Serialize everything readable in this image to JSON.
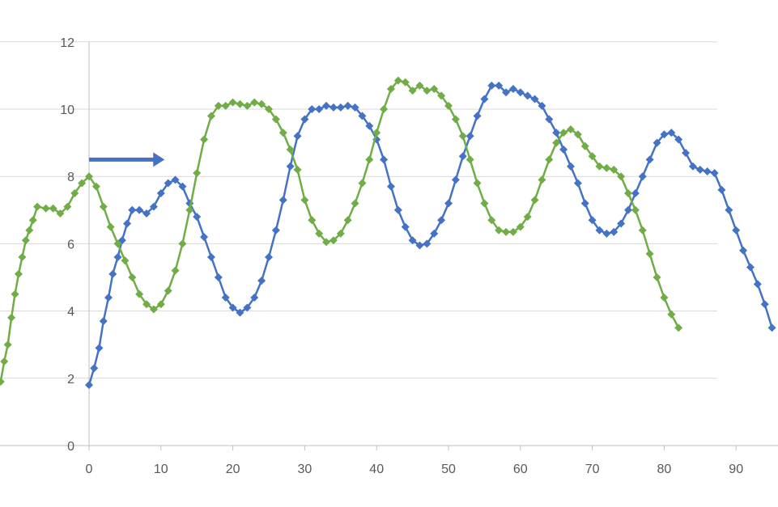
{
  "chart_data": {
    "type": "scatter",
    "title": "",
    "xlabel": "",
    "ylabel": "",
    "xlim": [
      -12.3,
      95.5
    ],
    "ylim": [
      0,
      12
    ],
    "x_ticks": [
      "0",
      "10",
      "20",
      "30",
      "40",
      "50",
      "60",
      "70",
      "80",
      "90"
    ],
    "y_ticks": [
      "0",
      "2",
      "4",
      "6",
      "8",
      "10",
      "12"
    ],
    "grid": "horizontal",
    "legend": "none",
    "arrow": {
      "from": [
        0,
        8.5
      ],
      "to": [
        10.5,
        8.5
      ],
      "color": "#4472C4"
    },
    "series": [
      {
        "color": "#4472C4",
        "points": [
          [
            0,
            1.8
          ],
          [
            0.7,
            2.3
          ],
          [
            1.4,
            2.9
          ],
          [
            2,
            3.7
          ],
          [
            2.7,
            4.4
          ],
          [
            3.3,
            5.1
          ],
          [
            4,
            5.6
          ],
          [
            4.6,
            6.1
          ],
          [
            5.3,
            6.6
          ],
          [
            6,
            7
          ],
          [
            7,
            7
          ],
          [
            8,
            6.9
          ],
          [
            9,
            7.1
          ],
          [
            10,
            7.5
          ],
          [
            11,
            7.8
          ],
          [
            12,
            7.9
          ],
          [
            13,
            7.7
          ],
          [
            14,
            7.2
          ],
          [
            15,
            6.8
          ],
          [
            16,
            6.2
          ],
          [
            17,
            5.6
          ],
          [
            18,
            5
          ],
          [
            19,
            4.4
          ],
          [
            20,
            4.1
          ],
          [
            21,
            3.95
          ],
          [
            22,
            4.1
          ],
          [
            23,
            4.4
          ],
          [
            24,
            4.9
          ],
          [
            25,
            5.6
          ],
          [
            26,
            6.4
          ],
          [
            27,
            7.3
          ],
          [
            28,
            8.3
          ],
          [
            29,
            9.2
          ],
          [
            30,
            9.7
          ],
          [
            31,
            10
          ],
          [
            32,
            10
          ],
          [
            33,
            10.1
          ],
          [
            34,
            10.05
          ],
          [
            35,
            10.05
          ],
          [
            36,
            10.1
          ],
          [
            37,
            10.05
          ],
          [
            38,
            9.8
          ],
          [
            39,
            9.5
          ],
          [
            40,
            9.1
          ],
          [
            41,
            8.5
          ],
          [
            42,
            7.7
          ],
          [
            43,
            7
          ],
          [
            44,
            6.5
          ],
          [
            45,
            6.1
          ],
          [
            46,
            5.95
          ],
          [
            47,
            6
          ],
          [
            48,
            6.3
          ],
          [
            49,
            6.7
          ],
          [
            50,
            7.2
          ],
          [
            51,
            7.9
          ],
          [
            52,
            8.6
          ],
          [
            53,
            9.2
          ],
          [
            54,
            9.8
          ],
          [
            55,
            10.3
          ],
          [
            56,
            10.7
          ],
          [
            57,
            10.7
          ],
          [
            58,
            10.5
          ],
          [
            59,
            10.6
          ],
          [
            60,
            10.5
          ],
          [
            61,
            10.4
          ],
          [
            62,
            10.3
          ],
          [
            63,
            10.1
          ],
          [
            64,
            9.7
          ],
          [
            65,
            9.3
          ],
          [
            66,
            8.8
          ],
          [
            67,
            8.3
          ],
          [
            68,
            7.8
          ],
          [
            69,
            7.2
          ],
          [
            70,
            6.7
          ],
          [
            71,
            6.4
          ],
          [
            72,
            6.3
          ],
          [
            73,
            6.35
          ],
          [
            74,
            6.6
          ],
          [
            75,
            7
          ],
          [
            76,
            7.5
          ],
          [
            77,
            8
          ],
          [
            78,
            8.5
          ],
          [
            79,
            9
          ],
          [
            80,
            9.25
          ],
          [
            81,
            9.3
          ],
          [
            82,
            9.1
          ],
          [
            83,
            8.7
          ],
          [
            84,
            8.3
          ],
          [
            85,
            8.2
          ],
          [
            86,
            8.15
          ],
          [
            87,
            8.1
          ],
          [
            88,
            7.6
          ],
          [
            89,
            7
          ],
          [
            90,
            6.4
          ],
          [
            91,
            5.8
          ],
          [
            92,
            5.3
          ],
          [
            93,
            4.8
          ],
          [
            94,
            4.2
          ],
          [
            95,
            3.5
          ]
        ]
      },
      {
        "color": "#70AD47",
        "points": [
          [
            -12.3,
            1.9
          ],
          [
            -11.8,
            2.5
          ],
          [
            -11.3,
            3.0
          ],
          [
            -10.8,
            3.8
          ],
          [
            -10.3,
            4.5
          ],
          [
            -9.8,
            5.1
          ],
          [
            -9.3,
            5.6
          ],
          [
            -8.8,
            6.1
          ],
          [
            -8.3,
            6.4
          ],
          [
            -7.8,
            6.7
          ],
          [
            -7.2,
            7.1
          ],
          [
            -6,
            7.05
          ],
          [
            -5,
            7.05
          ],
          [
            -4,
            6.9
          ],
          [
            -3,
            7.1
          ],
          [
            -2,
            7.5
          ],
          [
            -1,
            7.8
          ],
          [
            0,
            8
          ],
          [
            1,
            7.7
          ],
          [
            2,
            7.1
          ],
          [
            3,
            6.5
          ],
          [
            4,
            6
          ],
          [
            5,
            5.5
          ],
          [
            6,
            5
          ],
          [
            7,
            4.5
          ],
          [
            8,
            4.2
          ],
          [
            9,
            4.05
          ],
          [
            10,
            4.2
          ],
          [
            11,
            4.6
          ],
          [
            12,
            5.2
          ],
          [
            13,
            6
          ],
          [
            14,
            7
          ],
          [
            15,
            8.1
          ],
          [
            16,
            9.1
          ],
          [
            17,
            9.8
          ],
          [
            18,
            10.1
          ],
          [
            19,
            10.1
          ],
          [
            20,
            10.2
          ],
          [
            21,
            10.15
          ],
          [
            22,
            10.1
          ],
          [
            23,
            10.2
          ],
          [
            24,
            10.15
          ],
          [
            25,
            10
          ],
          [
            26,
            9.7
          ],
          [
            27,
            9.3
          ],
          [
            28,
            8.8
          ],
          [
            29,
            8.2
          ],
          [
            30,
            7.3
          ],
          [
            31,
            6.7
          ],
          [
            32,
            6.3
          ],
          [
            33,
            6.05
          ],
          [
            34,
            6.1
          ],
          [
            35,
            6.3
          ],
          [
            36,
            6.7
          ],
          [
            37,
            7.2
          ],
          [
            38,
            7.8
          ],
          [
            39,
            8.5
          ],
          [
            40,
            9.3
          ],
          [
            41,
            10
          ],
          [
            42,
            10.6
          ],
          [
            43,
            10.85
          ],
          [
            44,
            10.8
          ],
          [
            45,
            10.55
          ],
          [
            46,
            10.7
          ],
          [
            47,
            10.55
          ],
          [
            48,
            10.6
          ],
          [
            49,
            10.4
          ],
          [
            50,
            10.1
          ],
          [
            51,
            9.7
          ],
          [
            52,
            9.2
          ],
          [
            53,
            8.5
          ],
          [
            54,
            7.8
          ],
          [
            55,
            7.2
          ],
          [
            56,
            6.7
          ],
          [
            57,
            6.4
          ],
          [
            58,
            6.35
          ],
          [
            59,
            6.35
          ],
          [
            60,
            6.5
          ],
          [
            61,
            6.8
          ],
          [
            62,
            7.3
          ],
          [
            63,
            7.9
          ],
          [
            64,
            8.5
          ],
          [
            65,
            9
          ],
          [
            66,
            9.3
          ],
          [
            67,
            9.4
          ],
          [
            68,
            9.25
          ],
          [
            69,
            8.9
          ],
          [
            70,
            8.6
          ],
          [
            71,
            8.3
          ],
          [
            72,
            8.25
          ],
          [
            73,
            8.2
          ],
          [
            74,
            8
          ],
          [
            75,
            7.5
          ],
          [
            76,
            7
          ],
          [
            77,
            6.4
          ],
          [
            78,
            5.7
          ],
          [
            79,
            5
          ],
          [
            80,
            4.4
          ],
          [
            81,
            3.9
          ],
          [
            82,
            3.5
          ]
        ]
      }
    ]
  }
}
